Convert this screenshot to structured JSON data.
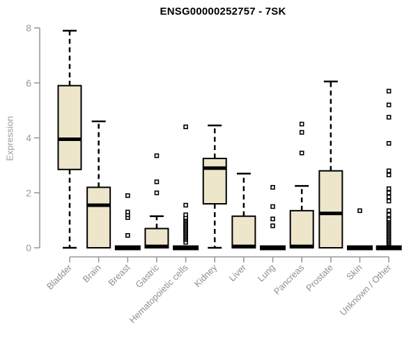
{
  "title": "ENSG00000252757 - 7SK",
  "ylabel": "Expression",
  "colors": {
    "box_fill": "#ede6cb",
    "box_line": "#000000",
    "axis": "#999999",
    "tick_label": "#999999",
    "background": "#ffffff"
  },
  "chart_data": {
    "type": "boxplot",
    "title": "ENSG00000252757 - 7SK",
    "xlabel": "",
    "ylabel": "Expression",
    "ylim": [
      0,
      8
    ],
    "yticks": [
      0,
      2,
      4,
      6,
      8
    ],
    "grid": false,
    "legend": "none",
    "categories": [
      "Bladder",
      "Brain",
      "Breast",
      "Gastric",
      "Hematopoietic cells",
      "Kidney",
      "Liver",
      "Lung",
      "Pancreas",
      "Prostate",
      "Skin",
      "Unknown / Other"
    ],
    "series": [
      {
        "name": "Bladder",
        "min": 0,
        "q1": 2.85,
        "median": 3.95,
        "q3": 5.9,
        "max": 7.9,
        "outliers": []
      },
      {
        "name": "Brain",
        "min": 0,
        "q1": 0,
        "median": 1.55,
        "q3": 2.2,
        "max": 4.6,
        "outliers": []
      },
      {
        "name": "Breast",
        "min": 0,
        "q1": 0,
        "median": 0,
        "q3": 0,
        "max": 0,
        "outliers": [
          0.45,
          1.1,
          1.2,
          1.3,
          1.9
        ]
      },
      {
        "name": "Gastric",
        "min": 0,
        "q1": 0,
        "median": 0.05,
        "q3": 0.7,
        "max": 1.15,
        "outliers": [
          2.0,
          2.4,
          3.35
        ]
      },
      {
        "name": "Hematopoietic cells",
        "min": 0,
        "q1": 0,
        "median": 0,
        "q3": 0,
        "max": 0,
        "outliers": [
          0.2,
          0.3,
          0.35,
          0.4,
          0.45,
          0.5,
          0.55,
          0.6,
          0.65,
          0.7,
          0.75,
          0.8,
          0.85,
          0.9,
          0.95,
          1.0,
          1.05,
          1.1,
          1.2,
          1.55,
          4.4
        ]
      },
      {
        "name": "Kidney",
        "min": 0,
        "q1": 1.6,
        "median": 2.9,
        "q3": 3.25,
        "max": 4.45,
        "outliers": []
      },
      {
        "name": "Liver",
        "min": 0,
        "q1": 0,
        "median": 0.05,
        "q3": 1.15,
        "max": 2.7,
        "outliers": []
      },
      {
        "name": "Lung",
        "min": 0,
        "q1": 0,
        "median": 0,
        "q3": 0,
        "max": 0,
        "outliers": [
          0.8,
          1.05,
          1.5,
          2.2
        ]
      },
      {
        "name": "Pancreas",
        "min": 0,
        "q1": 0,
        "median": 0.05,
        "q3": 1.35,
        "max": 2.25,
        "outliers": [
          3.45,
          4.2,
          4.5
        ]
      },
      {
        "name": "Prostate",
        "min": 0,
        "q1": 0,
        "median": 1.25,
        "q3": 2.8,
        "max": 6.05,
        "outliers": []
      },
      {
        "name": "Skin",
        "min": 0,
        "q1": 0,
        "median": 0,
        "q3": 0,
        "max": 0,
        "outliers": [
          1.35
        ]
      },
      {
        "name": "Unknown / Other",
        "min": 0,
        "q1": 0,
        "median": 0,
        "q3": 0,
        "max": 0,
        "outliers": [
          0.15,
          0.2,
          0.25,
          0.3,
          0.35,
          0.4,
          0.45,
          0.5,
          0.55,
          0.6,
          0.65,
          0.7,
          0.75,
          0.8,
          0.85,
          0.9,
          0.95,
          1.0,
          1.05,
          1.15,
          1.2,
          1.35,
          1.7,
          1.85,
          2.0,
          2.15,
          2.65,
          2.8,
          3.8,
          4.75,
          5.2,
          5.7
        ]
      }
    ]
  }
}
